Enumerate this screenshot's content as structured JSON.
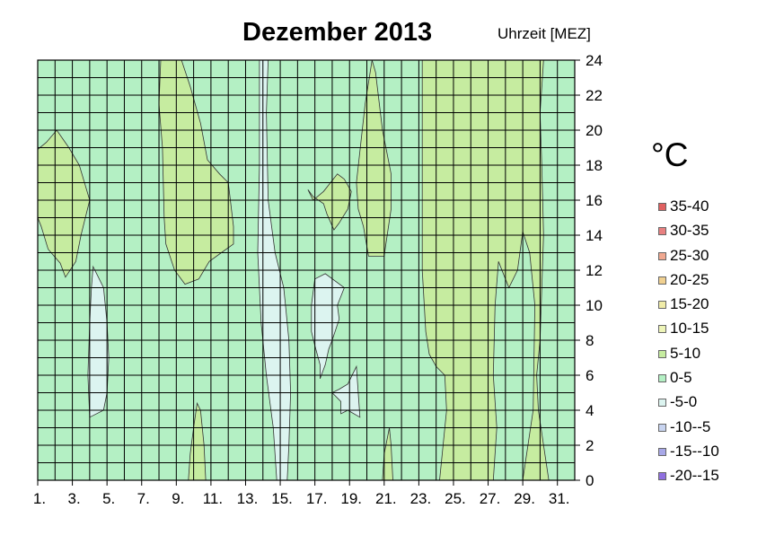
{
  "chart_data": {
    "type": "heatmap",
    "title": "Dezember 2013",
    "ylabel": "Uhrzeit [MEZ]",
    "xlim": [
      1,
      32
    ],
    "ylim": [
      0,
      24
    ],
    "x_ticks": [
      "1.",
      "3.",
      "5.",
      "7.",
      "9.",
      "11.",
      "13.",
      "15.",
      "17.",
      "19.",
      "21.",
      "23.",
      "25.",
      "27.",
      "29.",
      "31."
    ],
    "y_ticks": [
      0,
      2,
      4,
      6,
      8,
      10,
      12,
      14,
      16,
      18,
      20,
      22,
      24
    ],
    "grid": true,
    "legend_title": "°C",
    "legend": [
      {
        "label": "35-40",
        "color": "#e06060"
      },
      {
        "label": "30-35",
        "color": "#e88080"
      },
      {
        "label": "25-30",
        "color": "#f0a890"
      },
      {
        "label": "20-25",
        "color": "#f0d090"
      },
      {
        "label": "15-20",
        "color": "#f0eca8"
      },
      {
        "label": "10-15",
        "color": "#eef5b8"
      },
      {
        "label": "5-10",
        "color": "#c6eca0"
      },
      {
        "label": "0-5",
        "color": "#b4f0c4"
      },
      {
        "label": "-5-0",
        "color": "#dcf4f0"
      },
      {
        "label": "-10--5",
        "color": "#c8d4f0"
      },
      {
        "label": "-15--10",
        "color": "#a8a8e8"
      },
      {
        "label": "-20--15",
        "color": "#9070e0"
      }
    ],
    "regions": [
      {
        "band": "5-10",
        "points": [
          [
            1,
            18.9
          ],
          [
            1.5,
            19.3
          ],
          [
            2.1,
            20
          ],
          [
            2.8,
            19
          ],
          [
            3.4,
            18
          ],
          [
            4,
            16
          ],
          [
            3.5,
            14
          ],
          [
            3.2,
            12.5
          ],
          [
            2.6,
            11.6
          ],
          [
            2.3,
            12.4
          ],
          [
            1.6,
            13.2
          ],
          [
            1.2,
            14.5
          ],
          [
            1,
            15
          ]
        ]
      },
      {
        "band": "5-10",
        "points": [
          [
            8.1,
            24
          ],
          [
            9.3,
            24
          ],
          [
            9.8,
            22.5
          ],
          [
            10.4,
            20.4
          ],
          [
            10.8,
            18.3
          ],
          [
            11.5,
            17.5
          ],
          [
            12,
            17
          ],
          [
            12.3,
            14.5
          ],
          [
            12.3,
            13.5
          ],
          [
            11.6,
            13
          ],
          [
            10.9,
            12.5
          ],
          [
            10.3,
            11.5
          ],
          [
            9.5,
            11.2
          ],
          [
            8.9,
            12
          ],
          [
            8.4,
            13.5
          ],
          [
            8.3,
            15
          ],
          [
            8.2,
            19
          ],
          [
            8,
            21.5
          ]
        ]
      },
      {
        "band": "5-10",
        "points": [
          [
            19.4,
            17
          ],
          [
            19.9,
            21.5
          ],
          [
            20.3,
            24
          ],
          [
            20.5,
            23.3
          ],
          [
            20.9,
            20
          ],
          [
            21.4,
            17.5
          ],
          [
            21.4,
            15.5
          ],
          [
            21.1,
            13.5
          ],
          [
            21,
            12.8
          ],
          [
            20.1,
            12.8
          ],
          [
            19.8,
            14.5
          ],
          [
            19.5,
            15.5
          ]
        ]
      },
      {
        "band": "5-10",
        "points": [
          [
            16.6,
            16.6
          ],
          [
            16.9,
            16
          ],
          [
            17.5,
            16.5
          ],
          [
            18.3,
            17.5
          ],
          [
            18.7,
            17.2
          ],
          [
            19.1,
            16.5
          ],
          [
            18.9,
            15.5
          ],
          [
            18.4,
            14.7
          ],
          [
            18.1,
            14.3
          ],
          [
            17.7,
            15.2
          ],
          [
            17.5,
            15.8
          ],
          [
            16.9,
            16.2
          ]
        ]
      },
      {
        "band": "5-10",
        "points": [
          [
            23.2,
            24
          ],
          [
            30.2,
            24
          ],
          [
            30,
            21
          ],
          [
            30.1,
            18
          ],
          [
            30.2,
            14
          ],
          [
            30.1,
            11
          ],
          [
            30,
            8
          ],
          [
            29.8,
            6
          ],
          [
            29.9,
            4
          ],
          [
            30.2,
            2
          ],
          [
            30.5,
            0
          ],
          [
            29,
            0
          ],
          [
            29.3,
            2
          ],
          [
            29.6,
            4
          ],
          [
            29.7,
            10
          ],
          [
            29.4,
            13
          ],
          [
            29,
            14.2
          ],
          [
            28.7,
            12
          ],
          [
            28.2,
            11
          ],
          [
            27.6,
            12.5
          ],
          [
            27.4,
            10
          ],
          [
            27.3,
            6
          ],
          [
            27.5,
            3
          ],
          [
            27.3,
            0
          ],
          [
            24.2,
            0
          ],
          [
            24.4,
            2
          ],
          [
            24.6,
            4
          ],
          [
            24.5,
            6
          ],
          [
            24,
            6.5
          ],
          [
            23.6,
            7.2
          ],
          [
            23.4,
            8.5
          ],
          [
            23.2,
            12
          ],
          [
            23.2,
            18
          ]
        ]
      },
      {
        "band": "5-10",
        "points": [
          [
            9.7,
            0
          ],
          [
            10.7,
            0
          ],
          [
            10.6,
            2
          ],
          [
            10.4,
            4
          ],
          [
            10.2,
            4.4
          ],
          [
            10,
            3
          ],
          [
            9.8,
            1.5
          ]
        ]
      },
      {
        "band": "5-10",
        "points": [
          [
            20.9,
            0
          ],
          [
            21.5,
            0
          ],
          [
            21.4,
            2
          ],
          [
            21.3,
            3
          ],
          [
            21,
            1.5
          ]
        ]
      },
      {
        "band": "-5-0",
        "points": [
          [
            13.8,
            24
          ],
          [
            14.3,
            24
          ],
          [
            14.2,
            21
          ],
          [
            14.3,
            16
          ],
          [
            14.7,
            13
          ],
          [
            15.2,
            11
          ],
          [
            15.3,
            10
          ],
          [
            15.5,
            8
          ],
          [
            15.6,
            5
          ],
          [
            15.5,
            2
          ],
          [
            15.4,
            0
          ],
          [
            14.8,
            0
          ],
          [
            14.6,
            3
          ],
          [
            14.2,
            6
          ],
          [
            13.9,
            9
          ],
          [
            13.7,
            13
          ],
          [
            13.8,
            18
          ]
        ]
      },
      {
        "band": "-5-0",
        "points": [
          [
            4.1,
            11
          ],
          [
            4.2,
            12.2
          ],
          [
            4.8,
            11
          ],
          [
            5,
            9
          ],
          [
            5.1,
            7
          ],
          [
            5,
            5
          ],
          [
            4.8,
            4
          ],
          [
            4,
            3.6
          ],
          [
            3.9,
            6
          ],
          [
            4,
            9
          ]
        ]
      },
      {
        "band": "-5-0",
        "points": [
          [
            17,
            11.5
          ],
          [
            17.6,
            11.8
          ],
          [
            18.7,
            11
          ],
          [
            18.3,
            10
          ],
          [
            18.4,
            9.2
          ],
          [
            18,
            8
          ],
          [
            17.8,
            7.5
          ],
          [
            17.6,
            6.6
          ],
          [
            17.3,
            5.8
          ],
          [
            17.3,
            6.6
          ],
          [
            17,
            7.7
          ],
          [
            16.8,
            8.5
          ],
          [
            16.8,
            10
          ]
        ]
      },
      {
        "band": "-5-0",
        "points": [
          [
            18,
            5
          ],
          [
            18.4,
            5.2
          ],
          [
            18.9,
            5.5
          ],
          [
            19.4,
            6.5
          ],
          [
            19.5,
            5
          ],
          [
            19.6,
            3.6
          ],
          [
            18.9,
            4
          ],
          [
            18.5,
            3.8
          ],
          [
            18.5,
            4.5
          ]
        ]
      }
    ]
  }
}
